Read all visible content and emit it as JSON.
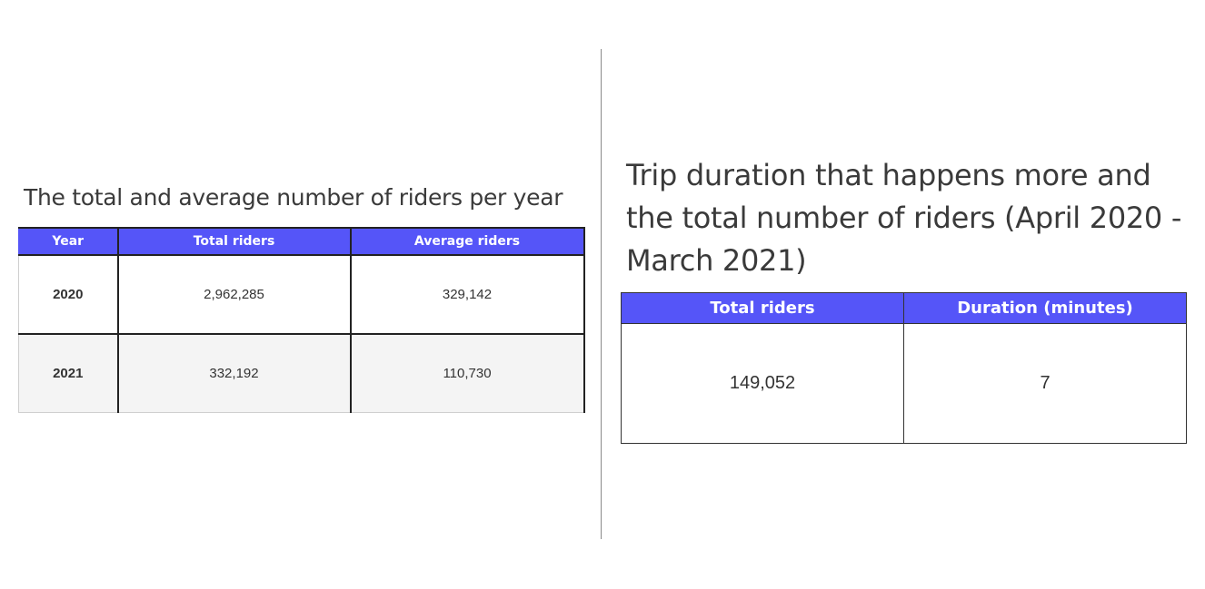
{
  "chart_data": [
    {
      "type": "table",
      "title": "The total and average number of riders per year",
      "columns": [
        "Year",
        "Total riders",
        "Average riders"
      ],
      "rows": [
        [
          "2020",
          "2,962,285",
          "329,142"
        ],
        [
          "2021",
          "332,192",
          "110,730"
        ]
      ]
    },
    {
      "type": "table",
      "title": "Trip duration that happens more and the total number of riders (April 2020 - March 2021)",
      "columns": [
        "Total riders",
        "Duration (minutes)"
      ],
      "rows": [
        [
          "149,052",
          "7"
        ]
      ]
    }
  ],
  "colors": {
    "header_bg": "#5555f8",
    "header_text": "#ffffff",
    "alt_row_bg": "#f4f4f4"
  }
}
